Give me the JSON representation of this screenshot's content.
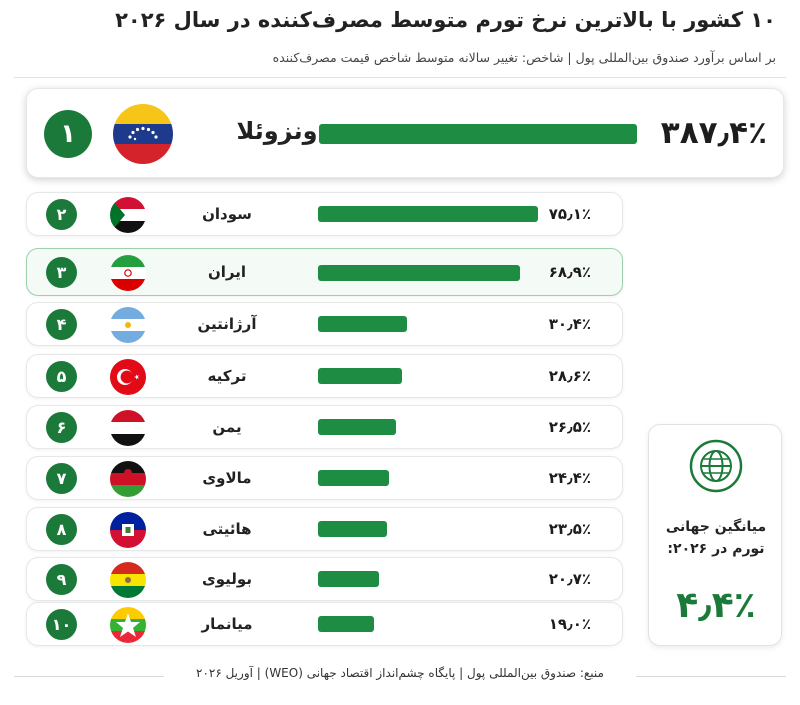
{
  "title": "۱۰ کشور با بالاترین نرخ تورم متوسط مصرف‌کننده در سال ۲۰۲۶",
  "subtitle": "بر اساس برآورد صندوق بین‌المللی پول  |  شاخص: تغییر سالانه متوسط شاخص قیمت مصرف‌کننده",
  "top": {
    "rank": "۱",
    "name": "ونزوئلا",
    "value_text": "۳۸۷٫۴٪"
  },
  "rows": [
    {
      "rank": "۲",
      "name": "سودان",
      "value_text": "۷۵٫۱٪"
    },
    {
      "rank": "۳",
      "name": "ایران",
      "value_text": "۶۸٫۹٪"
    },
    {
      "rank": "۴",
      "name": "آرژانتین",
      "value_text": "۳۰٫۴٪"
    },
    {
      "rank": "۵",
      "name": "ترکیه",
      "value_text": "۲۸٫۶٪"
    },
    {
      "rank": "۶",
      "name": "یمن",
      "value_text": "۲۶٫۵٪"
    },
    {
      "rank": "۷",
      "name": "مالاوی",
      "value_text": "۲۴٫۴٪"
    },
    {
      "rank": "۸",
      "name": "هائیتی",
      "value_text": "۲۳٫۵٪"
    },
    {
      "rank": "۹",
      "name": "بولیوی",
      "value_text": "۲۰٫۷٪"
    },
    {
      "rank": "۱۰",
      "name": "میانمار",
      "value_text": "۱۹٫۰٪"
    }
  ],
  "average": {
    "label": "میانگین جهانی تورم در ۲۰۲۶:",
    "value_text": "۴٫۴٪",
    "icon": "globe-icon"
  },
  "footer": "منبع: صندوق بین‌المللی پول  |  پایگاه چشم‌انداز اقتصاد جهانی (WEO)  |  آوریل ۲۰۲۶",
  "colors": {
    "accent": "#1b7a3a",
    "bar": "#1f8c44",
    "highlight_border": "#9ed0ac"
  },
  "chart_data": {
    "type": "bar",
    "orientation": "horizontal",
    "title": "۱۰ کشور با بالاترین نرخ تورم متوسط مصرف‌کننده در سال ۲۰۲۶",
    "subtitle": "بر اساس برآورد صندوق بین‌المللی پول  |  شاخص: تغییر سالانه متوسط شاخص قیمت مصرف‌کننده",
    "categories": [
      "ونزوئلا",
      "سودان",
      "ایران",
      "آرژانتین",
      "ترکیه",
      "یمن",
      "مالاوی",
      "هائیتی",
      "بولیوی",
      "میانمار"
    ],
    "values": [
      387.4,
      75.1,
      68.9,
      30.4,
      28.6,
      26.5,
      24.4,
      23.5,
      20.7,
      19.0
    ],
    "unit": "%",
    "highlighted_category": "ایران",
    "reference": {
      "label": "میانگین جهانی تورم در ۲۰۲۶:",
      "value": 4.4
    },
    "grid": false
  }
}
